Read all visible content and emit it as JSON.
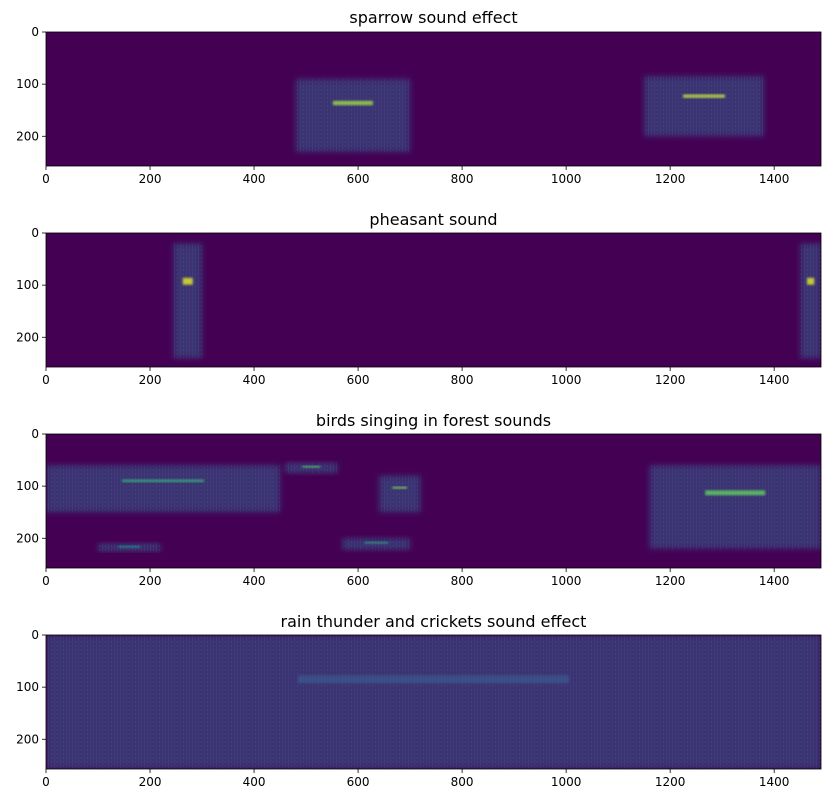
{
  "chart_data": [
    {
      "type": "heatmap",
      "title": "sparrow sound effect",
      "xlim": [
        0,
        1490
      ],
      "ylim": [
        257,
        0
      ],
      "xticks": [
        0,
        200,
        400,
        600,
        800,
        1000,
        1200,
        1400
      ],
      "yticks": [
        0,
        100,
        200
      ],
      "colormap": "viridis",
      "energy_regions": [
        {
          "x": [
            480,
            700
          ],
          "y": [
            90,
            230
          ],
          "peak": 0.85
        },
        {
          "x": [
            1150,
            1380
          ],
          "y": [
            85,
            200
          ],
          "peak": 0.9
        }
      ]
    },
    {
      "type": "heatmap",
      "title": "pheasant sound",
      "xlim": [
        0,
        1490
      ],
      "ylim": [
        257,
        0
      ],
      "xticks": [
        0,
        200,
        400,
        600,
        800,
        1000,
        1200,
        1400
      ],
      "yticks": [
        0,
        100,
        200
      ],
      "colormap": "viridis",
      "energy_regions": [
        {
          "x": [
            245,
            300
          ],
          "y": [
            20,
            240
          ],
          "peak": 0.95
        },
        {
          "x": [
            1450,
            1490
          ],
          "y": [
            20,
            240
          ],
          "peak": 0.95
        }
      ]
    },
    {
      "type": "heatmap",
      "title": "birds singing in forest sounds",
      "xlim": [
        0,
        1490
      ],
      "ylim": [
        257,
        0
      ],
      "xticks": [
        0,
        200,
        400,
        600,
        800,
        1000,
        1200,
        1400
      ],
      "yticks": [
        0,
        100,
        200
      ],
      "colormap": "viridis",
      "energy_regions": [
        {
          "x": [
            0,
            450
          ],
          "y": [
            60,
            150
          ],
          "peak": 0.6
        },
        {
          "x": [
            100,
            220
          ],
          "y": [
            210,
            225
          ],
          "peak": 0.5
        },
        {
          "x": [
            460,
            560
          ],
          "y": [
            55,
            75
          ],
          "peak": 0.7
        },
        {
          "x": [
            570,
            700
          ],
          "y": [
            200,
            222
          ],
          "peak": 0.55
        },
        {
          "x": [
            640,
            720
          ],
          "y": [
            80,
            150
          ],
          "peak": 0.8
        },
        {
          "x": [
            1160,
            1490
          ],
          "y": [
            60,
            220
          ],
          "peak": 0.75
        }
      ]
    },
    {
      "type": "heatmap",
      "title": "rain thunder and crickets sound effect",
      "xlim": [
        0,
        1490
      ],
      "ylim": [
        257,
        0
      ],
      "xticks": [
        0,
        200,
        400,
        600,
        800,
        1000,
        1200,
        1400
      ],
      "yticks": [
        0,
        100,
        200
      ],
      "colormap": "viridis",
      "energy_regions": [
        {
          "x": [
            0,
            1490
          ],
          "y": [
            0,
            257
          ],
          "peak": 0.25
        }
      ]
    }
  ]
}
